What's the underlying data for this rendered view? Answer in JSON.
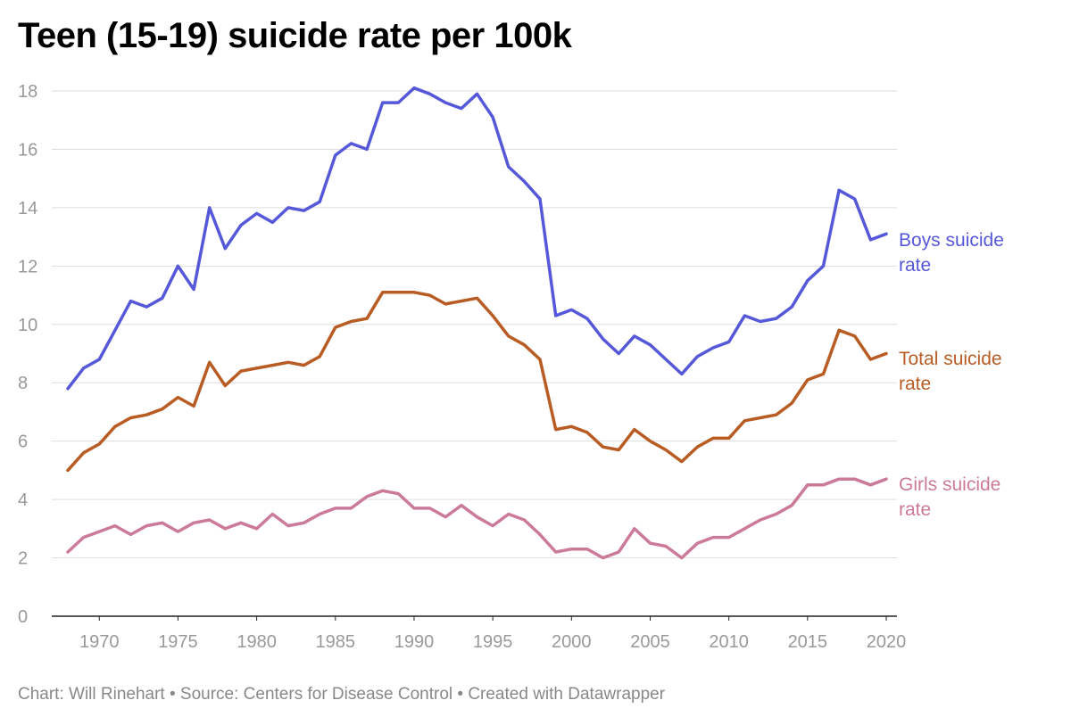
{
  "chart_data": {
    "type": "line",
    "title": "Teen (15-19) suicide rate per 100k",
    "footer": "Chart: Will Rinehart • Source: Centers for Disease Control • Created with Datawrapper",
    "xlabel": "",
    "ylabel": "",
    "xlim": [
      1968,
      2020
    ],
    "ylim": [
      0,
      18
    ],
    "yticks": [
      0,
      2,
      4,
      6,
      8,
      10,
      12,
      14,
      16,
      18
    ],
    "xticks": [
      1970,
      1975,
      1980,
      1985,
      1990,
      1995,
      2000,
      2005,
      2010,
      2015,
      2020
    ],
    "grid": true,
    "legend": "direct labels at right end of lines",
    "x": [
      1968,
      1969,
      1970,
      1971,
      1972,
      1973,
      1974,
      1975,
      1976,
      1977,
      1978,
      1979,
      1980,
      1981,
      1982,
      1983,
      1984,
      1985,
      1986,
      1987,
      1988,
      1989,
      1990,
      1991,
      1992,
      1993,
      1994,
      1995,
      1996,
      1997,
      1998,
      1999,
      2000,
      2001,
      2002,
      2003,
      2004,
      2005,
      2006,
      2007,
      2008,
      2009,
      2010,
      2011,
      2012,
      2013,
      2014,
      2015,
      2016,
      2017,
      2018,
      2019,
      2020
    ],
    "series": [
      {
        "name": "Boys suicide rate",
        "label_lines": [
          "Boys suicide",
          "rate"
        ],
        "color": "#5558d9",
        "values": [
          7.8,
          8.5,
          8.8,
          9.8,
          10.8,
          10.6,
          10.9,
          12.0,
          11.2,
          14.0,
          12.6,
          13.4,
          13.8,
          13.5,
          14.0,
          13.9,
          14.2,
          15.8,
          16.2,
          16.0,
          17.6,
          17.6,
          18.1,
          17.9,
          17.6,
          17.4,
          17.9,
          17.1,
          15.4,
          14.9,
          14.3,
          10.3,
          10.5,
          10.2,
          9.5,
          9.0,
          9.6,
          9.3,
          8.8,
          8.3,
          8.9,
          9.2,
          9.4,
          10.3,
          10.1,
          10.2,
          10.6,
          11.5,
          12.0,
          14.6,
          14.3,
          12.9,
          13.1
        ]
      },
      {
        "name": "Total suicide rate",
        "label_lines": [
          "Total suicide",
          "rate"
        ],
        "color": "#b85c24",
        "values": [
          5.0,
          5.6,
          5.9,
          6.5,
          6.8,
          6.9,
          7.1,
          7.5,
          7.2,
          8.7,
          7.9,
          8.4,
          8.5,
          8.6,
          8.7,
          8.6,
          8.9,
          9.9,
          10.1,
          10.2,
          11.1,
          11.1,
          11.1,
          11.0,
          10.7,
          10.8,
          10.9,
          10.3,
          9.6,
          9.3,
          8.8,
          6.4,
          6.5,
          6.3,
          5.8,
          5.7,
          6.4,
          6.0,
          5.7,
          5.3,
          5.8,
          6.1,
          6.1,
          6.7,
          6.8,
          6.9,
          7.3,
          8.1,
          8.3,
          9.8,
          9.6,
          8.8,
          9.0
        ]
      },
      {
        "name": "Girls suicide rate",
        "label_lines": [
          "Girls suicide",
          "rate"
        ],
        "color": "#cc7a99",
        "values": [
          2.2,
          2.7,
          2.9,
          3.1,
          2.8,
          3.1,
          3.2,
          2.9,
          3.2,
          3.3,
          3.0,
          3.2,
          3.0,
          3.5,
          3.1,
          3.2,
          3.5,
          3.7,
          3.7,
          4.1,
          4.3,
          4.2,
          3.7,
          3.7,
          3.4,
          3.8,
          3.4,
          3.1,
          3.5,
          3.3,
          2.8,
          2.2,
          2.3,
          2.3,
          2.0,
          2.2,
          3.0,
          2.5,
          2.4,
          2.0,
          2.5,
          2.7,
          2.7,
          3.0,
          3.3,
          3.5,
          3.8,
          4.5,
          4.5,
          4.7,
          4.7,
          4.5,
          4.7
        ]
      }
    ]
  }
}
